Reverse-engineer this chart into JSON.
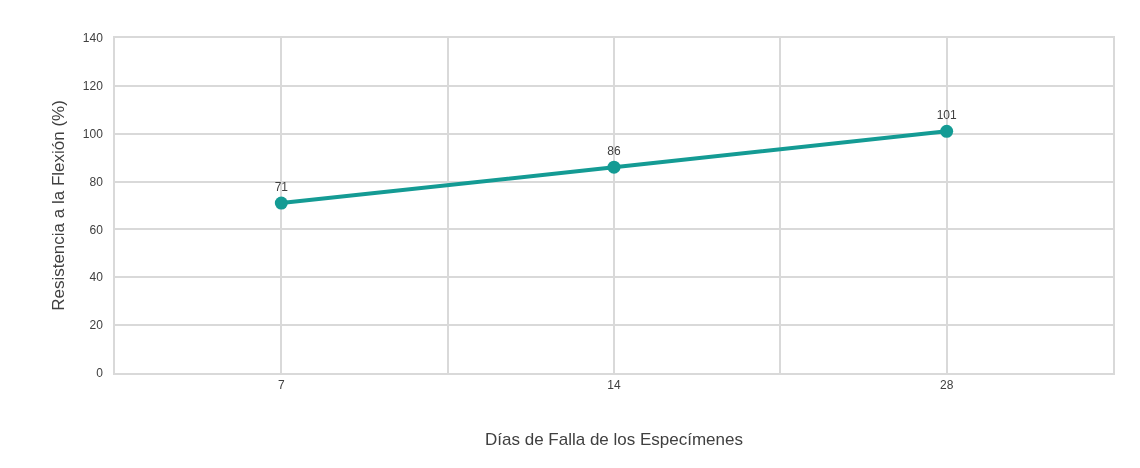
{
  "chart_data": {
    "type": "line",
    "xlabel": "Días de Falla de los Especímenes",
    "ylabel": "Resistencia a la Flexión (%)",
    "categories": [
      "7",
      "14",
      "28"
    ],
    "series": [
      {
        "color": "#149b94",
        "values": [
          71,
          86,
          101
        ]
      }
    ],
    "ylim": [
      0,
      140
    ],
    "yticks": [
      0,
      20,
      40,
      60,
      80,
      100,
      120,
      140
    ],
    "grid": true,
    "marker": "circle",
    "line_style": "solid",
    "data_labels": true
  }
}
